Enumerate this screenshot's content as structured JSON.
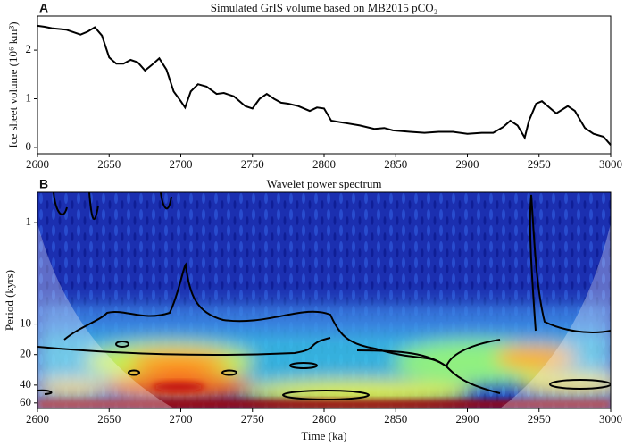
{
  "chart_data": [
    {
      "type": "line",
      "panel_label": "A",
      "title": "Simulated GrIS volume based on MB2015 pCO₂",
      "ylabel": "Ice sheet volume (10⁶ km³)",
      "color": "#000000",
      "xlim": [
        2600,
        3000
      ],
      "xticks": [
        2600,
        2650,
        2700,
        2750,
        2800,
        2850,
        2900,
        2950,
        3000
      ],
      "ylim": [
        -0.13,
        2.7
      ],
      "yticks": [
        0,
        1,
        2
      ],
      "x": [
        2600,
        2605,
        2610,
        2620,
        2630,
        2635,
        2640,
        2645,
        2650,
        2655,
        2660,
        2665,
        2670,
        2675,
        2680,
        2685,
        2690,
        2695,
        2700,
        2703,
        2707,
        2712,
        2718,
        2725,
        2730,
        2737,
        2745,
        2750,
        2755,
        2760,
        2765,
        2770,
        2775,
        2782,
        2790,
        2795,
        2800,
        2805,
        2815,
        2825,
        2835,
        2842,
        2848,
        2860,
        2870,
        2880,
        2890,
        2900,
        2910,
        2918,
        2925,
        2930,
        2935,
        2940,
        2943,
        2948,
        2952,
        2958,
        2962,
        2970,
        2975,
        2982,
        2988,
        2995,
        3000
      ],
      "values": [
        2.5,
        2.48,
        2.45,
        2.42,
        2.32,
        2.38,
        2.47,
        2.3,
        1.85,
        1.72,
        1.72,
        1.8,
        1.75,
        1.58,
        1.7,
        1.83,
        1.6,
        1.15,
        0.95,
        0.82,
        1.15,
        1.3,
        1.25,
        1.1,
        1.12,
        1.05,
        0.85,
        0.8,
        1.0,
        1.1,
        1.0,
        0.92,
        0.9,
        0.85,
        0.75,
        0.82,
        0.8,
        0.55,
        0.5,
        0.45,
        0.38,
        0.4,
        0.35,
        0.32,
        0.3,
        0.32,
        0.32,
        0.28,
        0.3,
        0.3,
        0.42,
        0.55,
        0.45,
        0.2,
        0.55,
        0.9,
        0.95,
        0.8,
        0.7,
        0.85,
        0.75,
        0.4,
        0.28,
        0.22,
        0.05
      ]
    },
    {
      "type": "wavelet",
      "panel_label": "B",
      "title": "Wavelet power spectrum",
      "xlabel": "Time (ka)",
      "ylabel": "Period (kyrs)",
      "xlim": [
        2600,
        3000
      ],
      "xticks": [
        2600,
        2650,
        2700,
        2750,
        2800,
        2850,
        2900,
        2950,
        3000
      ],
      "ylim": [
        0.5,
        68
      ],
      "yticks": [
        1,
        10,
        20,
        40,
        60
      ],
      "ylog": true,
      "yinverted": true
    }
  ]
}
